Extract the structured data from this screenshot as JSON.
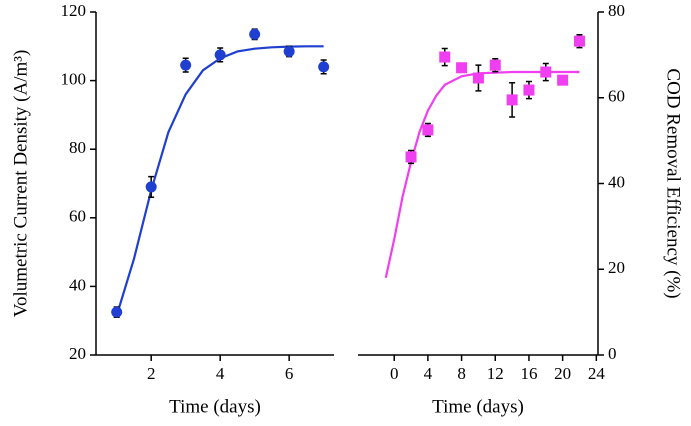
{
  "chart_data": [
    {
      "type": "scatter",
      "y_axis_side": "left",
      "x_label": "Time (days)",
      "y_label": "Volumetric Current Density (A/m³)",
      "xlim": [
        0.4,
        7.3
      ],
      "xticks": [
        2,
        4,
        6
      ],
      "ylim": [
        20,
        120
      ],
      "yticks": [
        20,
        40,
        60,
        80,
        100,
        120
      ],
      "series": [
        {
          "style": "line",
          "color": "#1f3fd0",
          "x": [
            1,
            1.5,
            2,
            2.5,
            3,
            3.5,
            4,
            4.5,
            5,
            5.5,
            6,
            6.5,
            7
          ],
          "values": [
            31.5,
            48,
            68,
            85,
            96,
            103,
            106.5,
            108.5,
            109.3,
            109.7,
            109.9,
            110,
            110
          ]
        },
        {
          "style": "points",
          "marker": "circle",
          "color": "#1f3fd0",
          "x": [
            1,
            2,
            3,
            4,
            5,
            6,
            7
          ],
          "values": [
            32.5,
            69,
            104.5,
            107.5,
            113.5,
            108.5,
            104
          ],
          "errors": [
            1.5,
            3,
            2,
            2,
            1.5,
            1.5,
            2
          ]
        }
      ]
    },
    {
      "type": "scatter",
      "y_axis_side": "right",
      "x_label": "Time (days)",
      "y_label": "COD Removal Efficiency (%)",
      "xlim": [
        -4.3,
        24.2
      ],
      "xticks": [
        0,
        4,
        8,
        12,
        16,
        20,
        24
      ],
      "ylim": [
        0,
        80
      ],
      "yticks": [
        0,
        20,
        40,
        60,
        80
      ],
      "series": [
        {
          "style": "line",
          "color": "#f03ff0",
          "x": [
            -1,
            0,
            1,
            2,
            3,
            4,
            5,
            6,
            8,
            10,
            14,
            18,
            22
          ],
          "values": [
            18,
            27,
            37,
            45,
            52,
            57,
            60.5,
            63,
            65,
            65.7,
            66,
            66,
            66
          ]
        },
        {
          "style": "points",
          "marker": "square",
          "color": "#f03ff0",
          "x": [
            2,
            4,
            6,
            8,
            10,
            12,
            14,
            16,
            18,
            20,
            22
          ],
          "values": [
            46.2,
            52.5,
            69.5,
            67,
            64.6,
            67.6,
            59.5,
            61.8,
            66,
            64.1,
            73.2
          ],
          "errors": [
            1.5,
            1.5,
            2,
            1,
            3,
            1.5,
            4,
            2,
            2,
            1,
            1.5
          ]
        }
      ]
    }
  ]
}
